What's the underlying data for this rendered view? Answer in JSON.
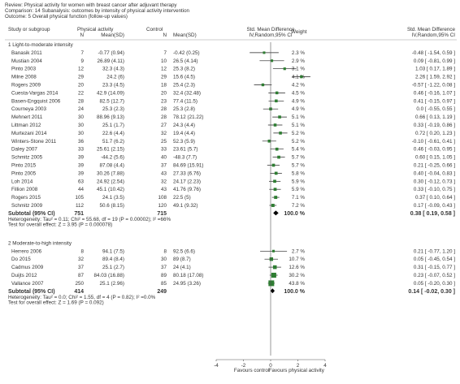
{
  "header": {
    "review": "Review:  Physical activity for women with breast cancer after adjuvant therapy",
    "comparison": "Comparison:  14 Subanalysis: outcomes by intensity of physical activity intervention",
    "outcome": "Outcome:  5 Overall physical function (follow-up values)"
  },
  "columns": {
    "study": "Study or subgroup",
    "pa_title": "Physical activity",
    "pa_n": "N",
    "pa_mean": "Mean(SD)",
    "ctl_title": "Control",
    "ctl_n": "N",
    "ctl_mean": "Mean(SD)",
    "smd_title1": "Std. Mean Difference",
    "smd_title2": "IV,Random,95% CI",
    "weight": "Weight",
    "smd2_title1": "Std. Mean Difference",
    "smd2_title2": "IV,Random,95% CI"
  },
  "axis": {
    "ticks": [
      "-4",
      "-2",
      "0",
      "2",
      "4"
    ],
    "left_label": "Favours control",
    "right_label": "Favours physical activity"
  },
  "chart_data": {
    "type": "forest",
    "xlim": [
      -4,
      4
    ],
    "x_ticks": [
      -4,
      -2,
      0,
      2,
      4
    ],
    "x_left_label": "Favours control",
    "x_right_label": "Favours physical activity",
    "subgroups": [
      {
        "title": "1 Light-to-moderate intensity",
        "studies": [
          {
            "name": "Banasik 2011",
            "n1": "7",
            "m1": "-0.77 (0.94)",
            "n2": "7",
            "m2": "-0.42 (0.25)",
            "weight": "2.3 %",
            "ci_text": "-0.48 [ -1.54, 0.59 ]",
            "est": -0.48,
            "lo": -1.54,
            "hi": 0.59
          },
          {
            "name": "Mustian 2004",
            "n1": "9",
            "m1": "26.89 (4.11)",
            "n2": "10",
            "m2": "26.5 (4.14)",
            "weight": "2.9 %",
            "ci_text": "0.09 [ -0.81, 0.99 ]",
            "est": 0.09,
            "lo": -0.81,
            "hi": 0.99
          },
          {
            "name": "Pinto 2003",
            "n1": "12",
            "m1": "32.3 (4.3)",
            "n2": "12",
            "m2": "25.3 (8.2)",
            "weight": "3.1 %",
            "ci_text": "1.03 [ 0.17, 1.89 ]",
            "est": 1.03,
            "lo": 0.17,
            "hi": 1.89
          },
          {
            "name": "Milne 2008",
            "n1": "29",
            "n2": "29",
            "m1": "24.2 (6)",
            "m2": "15.6 (4.5)",
            "weight": "4.1 %",
            "ci_text": "2.26 [ 1.59, 2.92 ]",
            "est": 2.26,
            "lo": 1.59,
            "hi": 2.92
          },
          {
            "name": "Rogers 2009",
            "n1": "20",
            "m1": "23.3 (4.5)",
            "n2": "18",
            "m2": "25.4 (2.3)",
            "weight": "4.2 %",
            "ci_text": "-0.57 [ -1.22, 0.08 ]",
            "est": -0.57,
            "lo": -1.22,
            "hi": 0.08
          },
          {
            "name": "Cuesta-Vargas 2014",
            "n1": "22",
            "m1": "42.9 (14.09)",
            "n2": "20",
            "m2": "32.4 (32.48)",
            "weight": "4.5 %",
            "ci_text": "0.46 [ -0.16, 1.07 ]",
            "est": 0.46,
            "lo": -0.16,
            "hi": 1.07
          },
          {
            "name": "Basen-Engquist 2006",
            "n1": "28",
            "m1": "82.5 (12.7)",
            "n2": "23",
            "m2": "77.4 (11.5)",
            "weight": "4.9 %",
            "ci_text": "0.41 [ -0.15, 0.97 ]",
            "est": 0.41,
            "lo": -0.15,
            "hi": 0.97
          },
          {
            "name": "Courneya 2003",
            "n1": "24",
            "m1": "25.3 (2.3)",
            "n2": "28",
            "m2": "25.3 (2.8)",
            "weight": "4.9 %",
            "ci_text": "0.0 [ -0.55, 0.55 ]",
            "est": 0.0,
            "lo": -0.55,
            "hi": 0.55
          },
          {
            "name": "Mehnert 2011",
            "n1": "30",
            "m1": "88.96 (9.13)",
            "n2": "28",
            "m2": "78.12 (21.22)",
            "weight": "5.1 %",
            "ci_text": "0.66 [ 0.13, 1.19 ]",
            "est": 0.66,
            "lo": 0.13,
            "hi": 1.19
          },
          {
            "name": "Littman 2012",
            "n1": "30",
            "m1": "25.1 (1.7)",
            "n2": "27",
            "m2": "24.3 (4.4)",
            "weight": "5.1 %",
            "ci_text": "0.33 [ -0.19, 0.86 ]",
            "est": 0.33,
            "lo": -0.19,
            "hi": 0.86
          },
          {
            "name": "Murtezani 2014",
            "n1": "30",
            "m1": "22.6 (4.4)",
            "n2": "32",
            "m2": "19.4 (4.4)",
            "weight": "5.2 %",
            "ci_text": "0.72 [ 0.20, 1.23 ]",
            "est": 0.72,
            "lo": 0.2,
            "hi": 1.23
          },
          {
            "name": "Winters-Stone 2011",
            "n1": "36",
            "m1": "51.7 (6.2)",
            "n2": "25",
            "m2": "52.3 (5.9)",
            "weight": "5.2 %",
            "ci_text": "-0.10 [ -0.61, 0.41 ]",
            "est": -0.1,
            "lo": -0.61,
            "hi": 0.41
          },
          {
            "name": "Daley 2007",
            "n1": "33",
            "m1": "25.61 (2.15)",
            "n2": "33",
            "m2": "23.61 (5.7)",
            "weight": "5.4 %",
            "ci_text": "0.46 [ -0.03, 0.95 ]",
            "est": 0.46,
            "lo": -0.03,
            "hi": 0.95
          },
          {
            "name": "Schmitz 2005",
            "n1": "39",
            "m1": "-44.2 (5.6)",
            "n2": "40",
            "m2": "-48.3 (7.7)",
            "weight": "5.7 %",
            "ci_text": "0.60 [ 0.15, 1.05 ]",
            "est": 0.6,
            "lo": 0.15,
            "hi": 1.05
          },
          {
            "name": "Pinto 2015",
            "n1": "39",
            "m1": "87.08 (4.4)",
            "n2": "37",
            "m2": "84.69 (15.91)",
            "weight": "5.7 %",
            "ci_text": "0.21 [ -0.25, 0.66 ]",
            "est": 0.21,
            "lo": -0.25,
            "hi": 0.66
          },
          {
            "name": "Pinto 2005",
            "n1": "39",
            "m1": "30.26 (7.88)",
            "n2": "43",
            "m2": "27.33 (6.76)",
            "weight": "5.8 %",
            "ci_text": "0.40 [ -0.04, 0.83 ]",
            "est": 0.4,
            "lo": -0.04,
            "hi": 0.83
          },
          {
            "name": "Loh 2014",
            "n1": "63",
            "m1": "24.92 (2.54)",
            "n2": "32",
            "m2": "24.17 (2.23)",
            "weight": "5.9 %",
            "ci_text": "0.30 [ -0.12, 0.73 ]",
            "est": 0.3,
            "lo": -0.12,
            "hi": 0.73
          },
          {
            "name": "Fillion 2008",
            "n1": "44",
            "m1": "45.1 (10.42)",
            "n2": "43",
            "m2": "41.76 (9.76)",
            "weight": "5.9 %",
            "ci_text": "0.33 [ -0.10, 0.75 ]",
            "est": 0.33,
            "lo": -0.1,
            "hi": 0.75
          },
          {
            "name": "Rogers 2015",
            "n1": "105",
            "m1": "24.1 (3.5)",
            "n2": "108",
            "m2": "22.5 (5)",
            "weight": "7.1 %",
            "ci_text": "0.37 [ 0.10, 0.64 ]",
            "est": 0.37,
            "lo": 0.1,
            "hi": 0.64
          },
          {
            "name": "Schmitz 2009",
            "n1": "112",
            "m1": "50.6 (8.15)",
            "n2": "120",
            "m2": "49.1 (9.32)",
            "weight": "7.2 %",
            "ci_text": "0.17 [ -0.09, 0.43 ]",
            "est": 0.17,
            "lo": -0.09,
            "hi": 0.43
          }
        ],
        "subtotal": {
          "label": "Subtotal (95% CI)",
          "n1": "751",
          "n2": "715",
          "weight": "100.0 %",
          "ci_text": "0.38 [ 0.19, 0.58 ]",
          "est": 0.38,
          "lo": 0.19,
          "hi": 0.58
        },
        "heterogeneity": "Heterogeneity: Tau² = 0.11; Chi² = 55.68, df = 19 (P = 0.00002); I² =66%",
        "overall_test": "Test for overall effect: Z = 3.95 (P = 0.000078)"
      },
      {
        "title": "2 Moderate-to-high intensity",
        "studies": [
          {
            "name": "Herrero 2006",
            "n1": "8",
            "m1": "94.1 (7.5)",
            "n2": "8",
            "m2": "92.5 (6.6)",
            "weight": "2.7 %",
            "ci_text": "0.21 [ -0.77, 1.20 ]",
            "est": 0.21,
            "lo": -0.77,
            "hi": 1.2
          },
          {
            "name": "Do 2015",
            "n1": "32",
            "m1": "89.4 (8.4)",
            "n2": "30",
            "m2": "89 (8.7)",
            "weight": "10.7 %",
            "ci_text": "0.05 [ -0.45, 0.54 ]",
            "est": 0.05,
            "lo": -0.45,
            "hi": 0.54
          },
          {
            "name": "Cadmus 2009",
            "n1": "37",
            "m1": "25.1 (2.7)",
            "n2": "37",
            "m2": "24 (4.1)",
            "weight": "12.6 %",
            "ci_text": "0.31 [ -0.15, 0.77 ]",
            "est": 0.31,
            "lo": -0.15,
            "hi": 0.77
          },
          {
            "name": "Duijts 2012",
            "n1": "87",
            "m1": "84.03 (16.88)",
            "n2": "89",
            "m2": "80.18 (17.08)",
            "weight": "30.2 %",
            "ci_text": "0.23 [ -0.07, 0.52 ]",
            "est": 0.23,
            "lo": -0.07,
            "hi": 0.52
          },
          {
            "name": "Vallance 2007",
            "n1": "250",
            "m1": "25.1 (2.96)",
            "n2": "85",
            "m2": "24.95 (3.26)",
            "weight": "43.8 %",
            "ci_text": "0.05 [ -0.20, 0.30 ]",
            "est": 0.05,
            "lo": -0.2,
            "hi": 0.3
          }
        ],
        "subtotal": {
          "label": "Subtotal (95% CI)",
          "n1": "414",
          "n2": "249",
          "weight": "100.0 %",
          "ci_text": "0.14 [ -0.02, 0.30 ]",
          "est": 0.14,
          "lo": -0.02,
          "hi": 0.3
        },
        "heterogeneity": "Heterogeneity: Tau² = 0.0; Chi² = 1.55, df = 4 (P = 0.82); I² =0.0%",
        "overall_test": "Test for overall effect: Z = 1.69 (P = 0.092)"
      }
    ]
  }
}
